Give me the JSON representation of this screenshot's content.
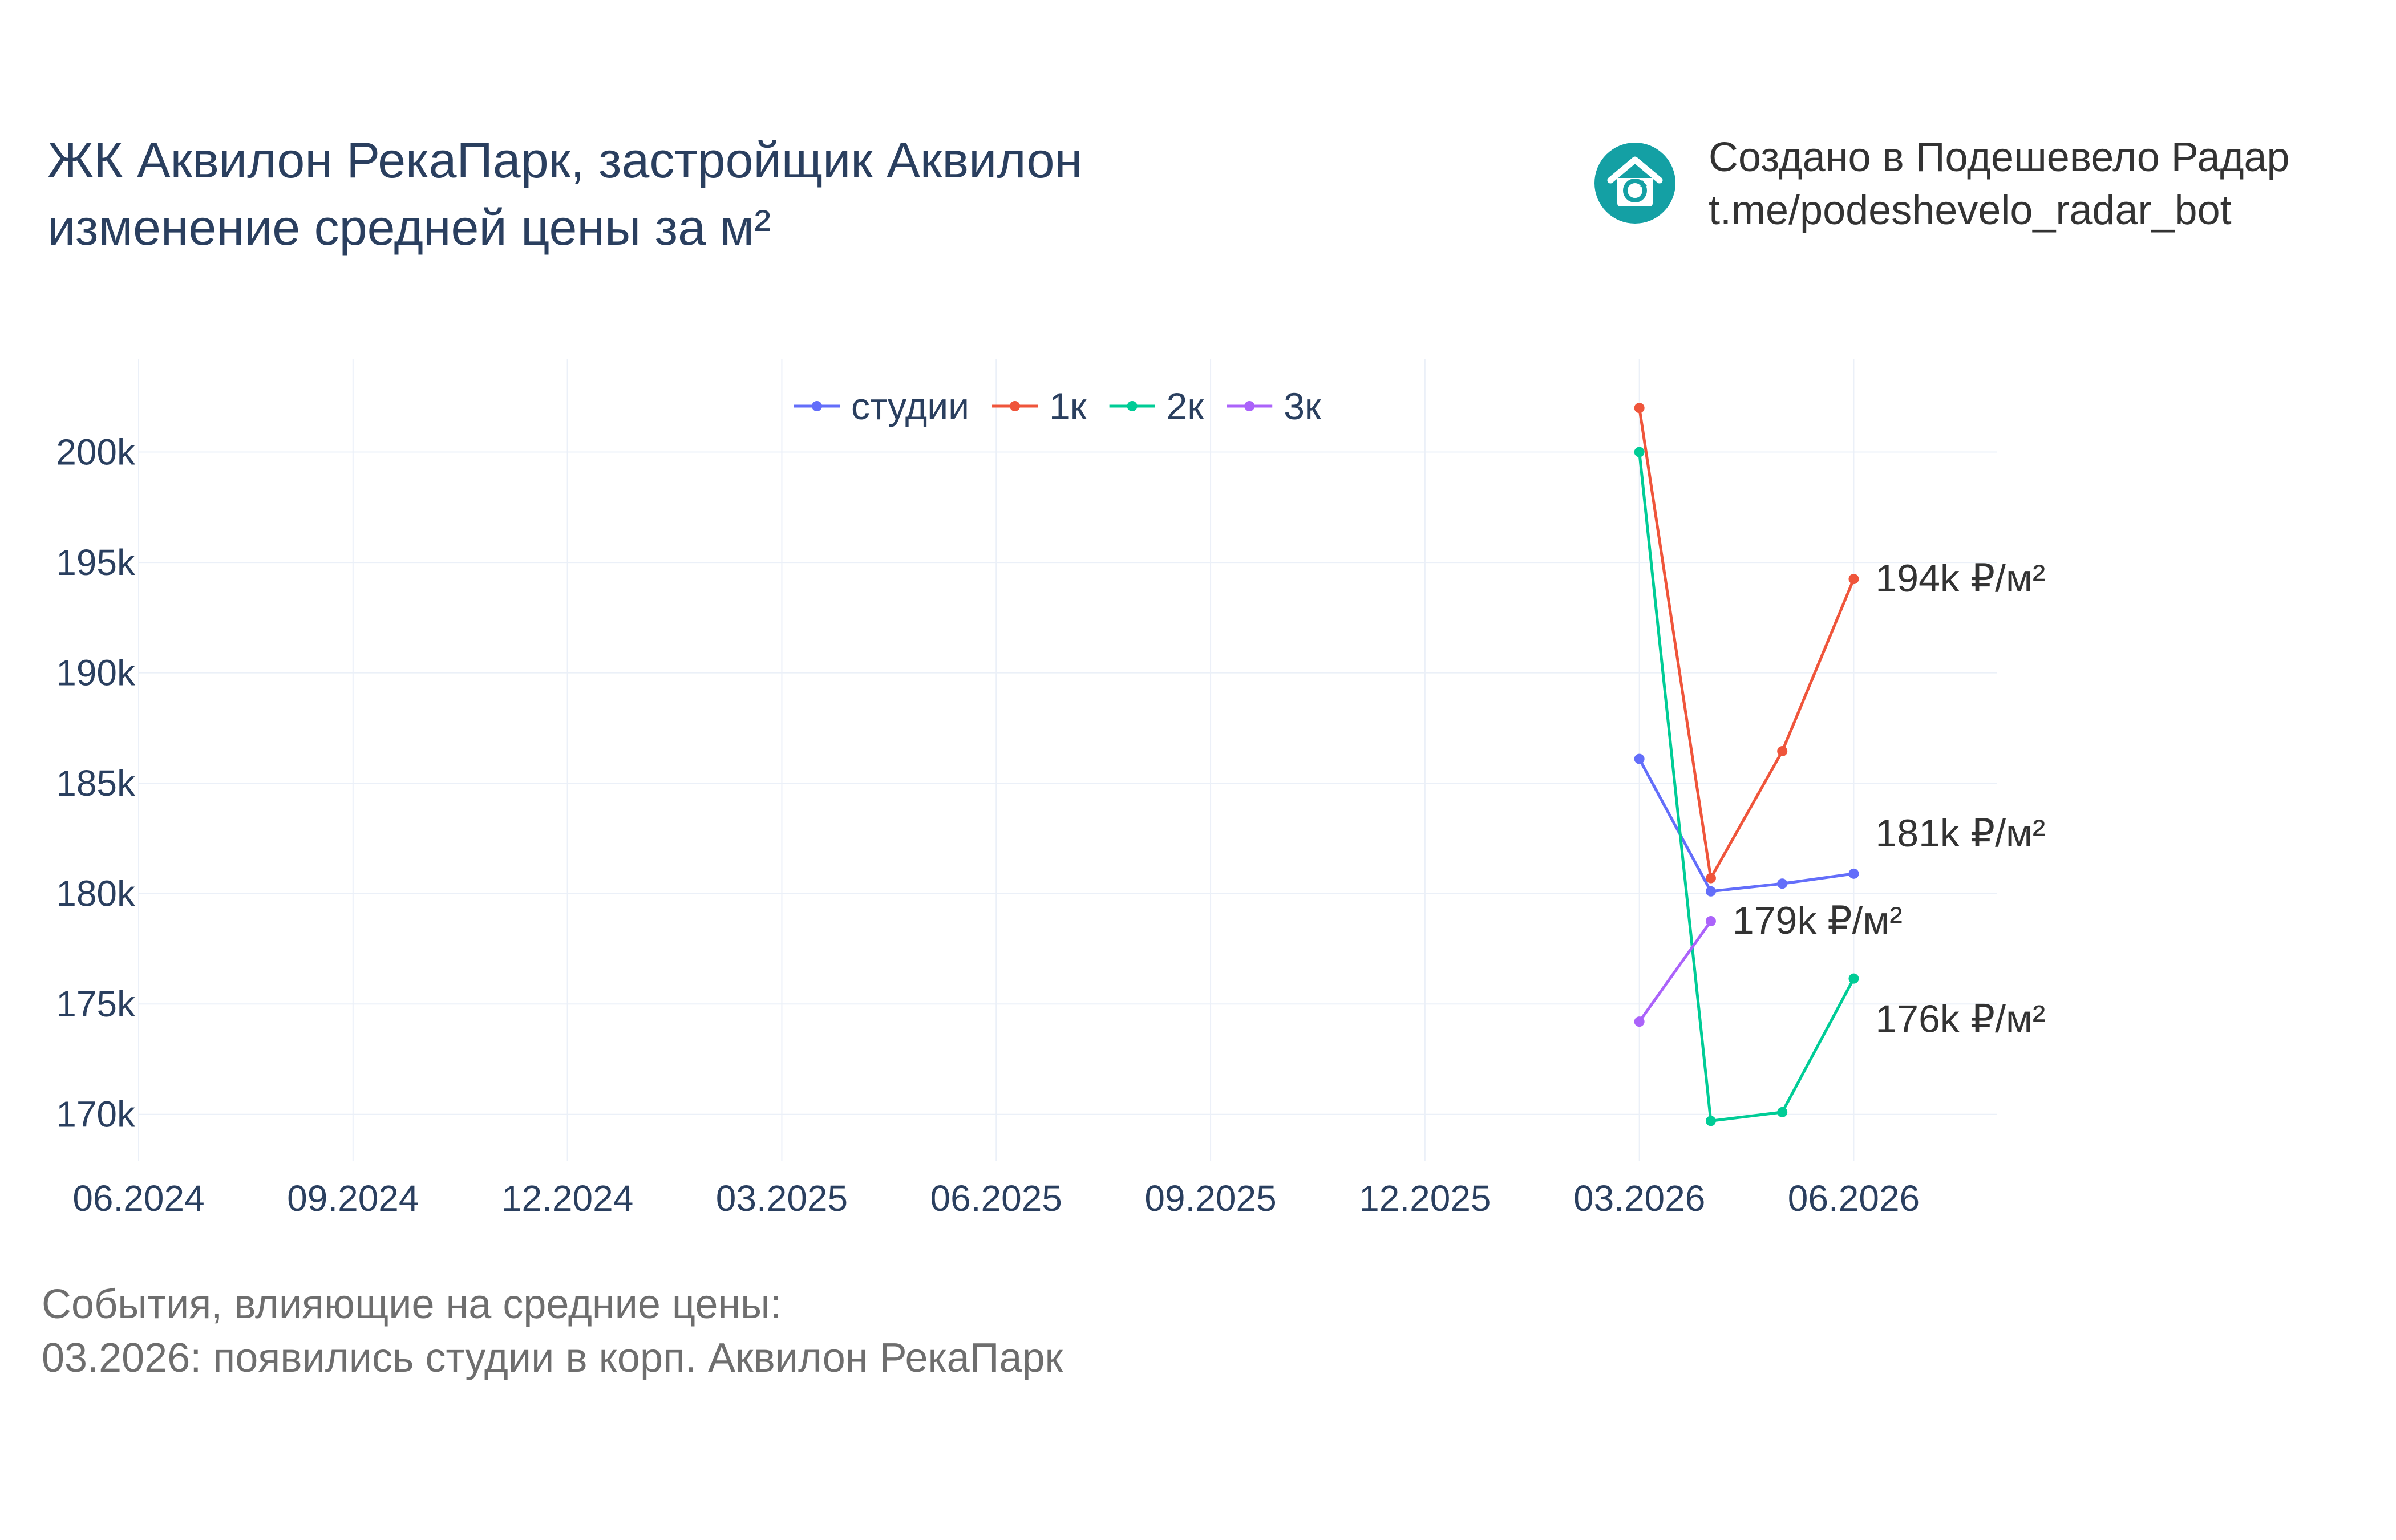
{
  "title": {
    "line1": "ЖК Аквилон РекаПарк, застройщик Аквилон",
    "line2": "изменение средней цены за м²"
  },
  "branding": {
    "line1": "Создано в Подешевело Радар",
    "line2": "t.me/podeshevelo_radar_bot",
    "logo_icon": "house-icon",
    "logo_color": "#14a0a4"
  },
  "chart_data": {
    "type": "line",
    "x_ticks": [
      "06.2024",
      "09.2024",
      "12.2024",
      "03.2025",
      "06.2025",
      "09.2025",
      "12.2025",
      "03.2026",
      "06.2026"
    ],
    "y_ticks": [
      "200k",
      "195k",
      "190k",
      "185k",
      "180k",
      "175k",
      "170k"
    ],
    "xlim": [
      "2024-06",
      "2026-08"
    ],
    "ylim": [
      167900,
      204200
    ],
    "grid": true,
    "legend_position": "top",
    "series": [
      {
        "name": "студии",
        "color": "#636efa",
        "points": [
          [
            "2026-03",
            186100
          ],
          [
            "2026-04",
            180100
          ],
          [
            "2026-05",
            180450
          ],
          [
            "2026-06",
            180900
          ]
        ],
        "end_label": "181k ₽/м²"
      },
      {
        "name": "1к",
        "color": "#ef553b",
        "points": [
          [
            "2026-03",
            202000
          ],
          [
            "2026-04",
            180700
          ],
          [
            "2026-05",
            186450
          ],
          [
            "2026-06",
            194250
          ]
        ],
        "end_label": "194k ₽/м²"
      },
      {
        "name": "2к",
        "color": "#00cc96",
        "points": [
          [
            "2026-03",
            200000
          ],
          [
            "2026-04",
            169700
          ],
          [
            "2026-05",
            170100
          ],
          [
            "2026-06",
            176150
          ]
        ],
        "end_label": "176k ₽/м²"
      },
      {
        "name": "3к",
        "color": "#ab63fa",
        "points": [
          [
            "2026-03",
            174200
          ],
          [
            "2026-04",
            178750
          ]
        ],
        "end_label": "179k ₽/м²"
      }
    ]
  },
  "notes": {
    "heading": "События, влияющие на средние цены:",
    "items": [
      "03.2026: появились студии в корп. Аквилон РекаПарк"
    ]
  }
}
